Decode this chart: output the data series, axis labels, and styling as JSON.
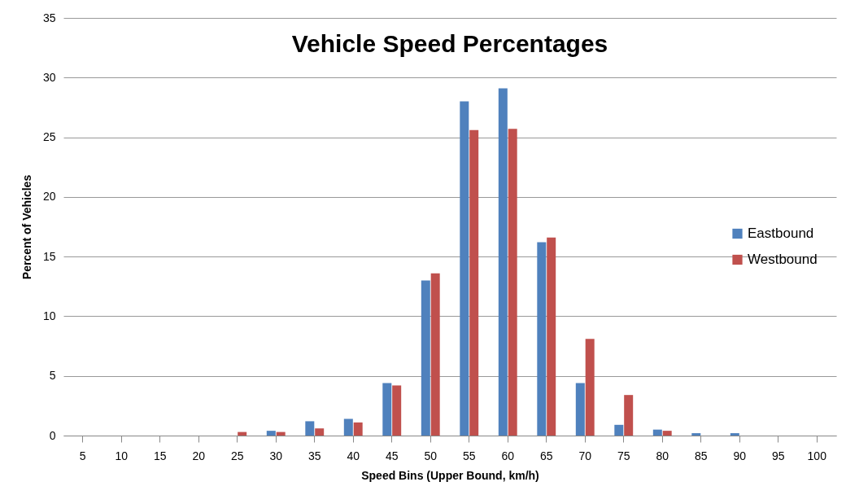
{
  "chart_data": {
    "type": "bar",
    "title": "Vehicle Speed Percentages",
    "xlabel": "Speed Bins (Upper Bound, km/h)",
    "ylabel": "Percent of Vehicles",
    "categories": [
      "5",
      "10",
      "15",
      "20",
      "25",
      "30",
      "35",
      "40",
      "45",
      "50",
      "55",
      "60",
      "65",
      "70",
      "75",
      "80",
      "85",
      "90",
      "95",
      "100"
    ],
    "series": [
      {
        "name": "Eastbound",
        "color": "#4f81bd",
        "values": [
          0,
          0,
          0,
          0,
          0,
          0.4,
          1.2,
          1.4,
          4.4,
          13.0,
          28.0,
          29.1,
          16.2,
          4.4,
          0.9,
          0.5,
          0.2,
          0.2,
          0,
          0
        ]
      },
      {
        "name": "Westbound",
        "color": "#c0504d",
        "values": [
          0,
          0,
          0,
          0,
          0.3,
          0.3,
          0.6,
          1.1,
          4.2,
          13.6,
          25.6,
          25.7,
          16.6,
          8.1,
          3.4,
          0.4,
          0,
          0,
          0,
          0
        ]
      }
    ],
    "ylim": [
      0,
      35
    ],
    "yticks": [
      0,
      5,
      10,
      15,
      20,
      25,
      30,
      35
    ],
    "grid": "y",
    "legend": "right"
  }
}
